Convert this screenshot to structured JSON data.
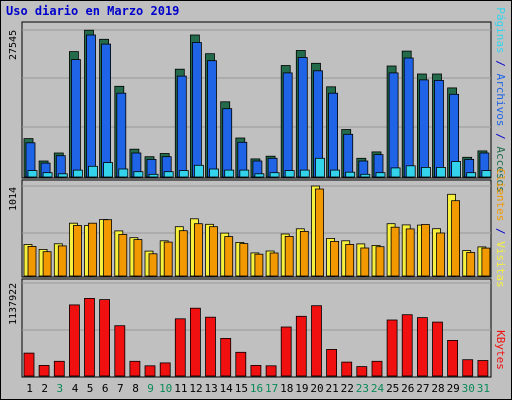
{
  "chart_data": {
    "type": "bar",
    "title": "Uso diario en Marzo 2019",
    "categories": [
      "1",
      "2",
      "3",
      "4",
      "5",
      "6",
      "7",
      "8",
      "9",
      "10",
      "11",
      "12",
      "13",
      "14",
      "15",
      "16",
      "17",
      "18",
      "19",
      "20",
      "21",
      "22",
      "23",
      "24",
      "25",
      "26",
      "27",
      "28",
      "29",
      "30",
      "31"
    ],
    "weekend_days": [
      "3",
      "9",
      "10",
      "16",
      "17",
      "23",
      "24",
      "30",
      "31"
    ],
    "colors": {
      "accesos": "#236b4b",
      "archivos": "#1f64e6",
      "paginas": "#33d3ec",
      "visitas": "#f7f03c",
      "clientes": "#f29900",
      "kbytes": "#f01010",
      "weekday_tick": "#000000",
      "weekend_tick": "#0a8a5a",
      "title": "#0000cc"
    },
    "panels": [
      {
        "id": "hits",
        "ytick_label": "27545",
        "ylim": [
          0,
          27545
        ],
        "series": [
          {
            "name": "Accesos",
            "values": [
              7200,
              3000,
              4500,
              23500,
              27500,
              25800,
              17000,
              5200,
              3800,
              4400,
              20200,
              26600,
              23100,
              14100,
              7300,
              3400,
              3900,
              20900,
              23700,
              21300,
              16900,
              8900,
              3500,
              4700,
              20800,
              23600,
              19300,
              19300,
              16700,
              3700,
              4900
            ]
          },
          {
            "name": "Archivos",
            "values": [
              6400,
              2600,
              4000,
              22000,
              26600,
              24900,
              15700,
              4500,
              3300,
              3800,
              18900,
              25200,
              21800,
              12800,
              6500,
              3000,
              3500,
              19500,
              22400,
              19900,
              15700,
              8000,
              3000,
              4200,
              19500,
              22300,
              18200,
              18100,
              15500,
              3300,
              4500
            ]
          },
          {
            "name": "Páginas",
            "values": [
              1200,
              800,
              600,
              1300,
              2000,
              2700,
              1500,
              1000,
              500,
              1000,
              1200,
              2200,
              1500,
              1300,
              1300,
              600,
              800,
              1200,
              1300,
              3500,
              1300,
              900,
              500,
              800,
              1700,
              2100,
              1800,
              1800,
              2900,
              800,
              1200
            ]
          }
        ]
      },
      {
        "id": "visits",
        "ytick_label": "1014",
        "ylim": [
          0,
          1014
        ],
        "series": [
          {
            "name": "Visitas",
            "values": [
              355,
              300,
              363,
              595,
              568,
              637,
              508,
              432,
              280,
              397,
              555,
              645,
              582,
              483,
              378,
              260,
              282,
              473,
              532,
              1014,
              424,
              397,
              362,
              345,
              589,
              576,
              573,
              533,
              920,
              286,
              328
            ]
          },
          {
            "name": "Clientes",
            "values": [
              333,
              274,
              339,
              569,
              595,
              634,
              468,
              410,
              250,
              382,
              510,
              589,
              555,
              444,
              365,
              246,
              259,
              446,
              503,
              980,
              390,
              356,
              316,
              330,
              550,
              531,
              580,
              485,
              848,
              265,
              314
            ]
          }
        ]
      },
      {
        "id": "kbytes",
        "ytick_label": "1137922",
        "ylim": [
          0,
          1137922
        ],
        "series": [
          {
            "name": "KBytes",
            "values": [
              280000,
              130000,
              180000,
              870000,
              950000,
              935000,
              615000,
              180000,
              125000,
              160000,
              700000,
              830000,
              720000,
              460000,
              290000,
              130000,
              125000,
              600000,
              730000,
              860000,
              325000,
              170000,
              115000,
              180000,
              685000,
              750000,
              715000,
              660000,
              435000,
              200000,
              190000
            ]
          }
        ]
      }
    ],
    "side_labels": {
      "accesos": "Accesos",
      "archivos": "Archivos",
      "paginas": "Páginas",
      "visitas": "Visitas",
      "clientes": "Clientes",
      "kbytes": "KBytes",
      "separator": "/"
    }
  }
}
